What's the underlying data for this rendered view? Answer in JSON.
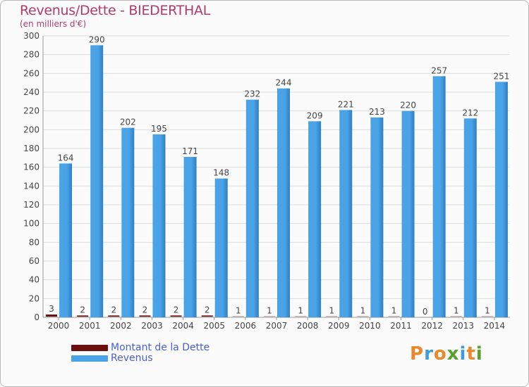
{
  "header": {
    "title": "Revenus/Dette - BIEDERTHAL",
    "subtitle": "(en milliers d'€)"
  },
  "colors": {
    "debt": "#6b0f0f",
    "revenue": "#4aa3e6",
    "revenue_dark": "#2e7fc4",
    "grid": "#dddddd",
    "title": "#b03a6a",
    "legend_text": "#4a5fd0"
  },
  "chart_data": {
    "type": "bar",
    "title": "Revenus/Dette - BIEDERTHAL",
    "ylabel": "(en milliers d'€)",
    "categories": [
      "2000",
      "2001",
      "2002",
      "2003",
      "2004",
      "2005",
      "2006",
      "2007",
      "2008",
      "2009",
      "2010",
      "2011",
      "2012",
      "2013",
      "2014"
    ],
    "series": [
      {
        "name": "Montant de la Dette",
        "values": [
          3,
          2,
          2,
          2,
          2,
          2,
          1,
          1,
          1,
          1,
          1,
          1,
          0,
          1,
          1
        ]
      },
      {
        "name": "Revenus",
        "values": [
          164,
          290,
          202,
          195,
          171,
          148,
          232,
          244,
          209,
          221,
          213,
          220,
          257,
          212,
          251
        ]
      }
    ],
    "ylim": [
      0,
      300
    ],
    "yticks": [
      0,
      20,
      40,
      60,
      80,
      100,
      120,
      140,
      160,
      180,
      200,
      220,
      240,
      260,
      280,
      300
    ],
    "grid": true,
    "legend_position": "bottom-left"
  },
  "legend": {
    "items": [
      {
        "label": "Montant de la Dette"
      },
      {
        "label": "Revenus"
      }
    ]
  },
  "logo": {
    "text": "Proxiti",
    "letters": [
      "P",
      "r",
      "o",
      "x",
      "i",
      "t",
      "i"
    ],
    "letter_colors": [
      "#e8892c",
      "#3f9cd8",
      "#e8892c",
      "#5aa02c",
      "#3f9cd8",
      "#e8892c",
      "#5aa02c"
    ]
  }
}
